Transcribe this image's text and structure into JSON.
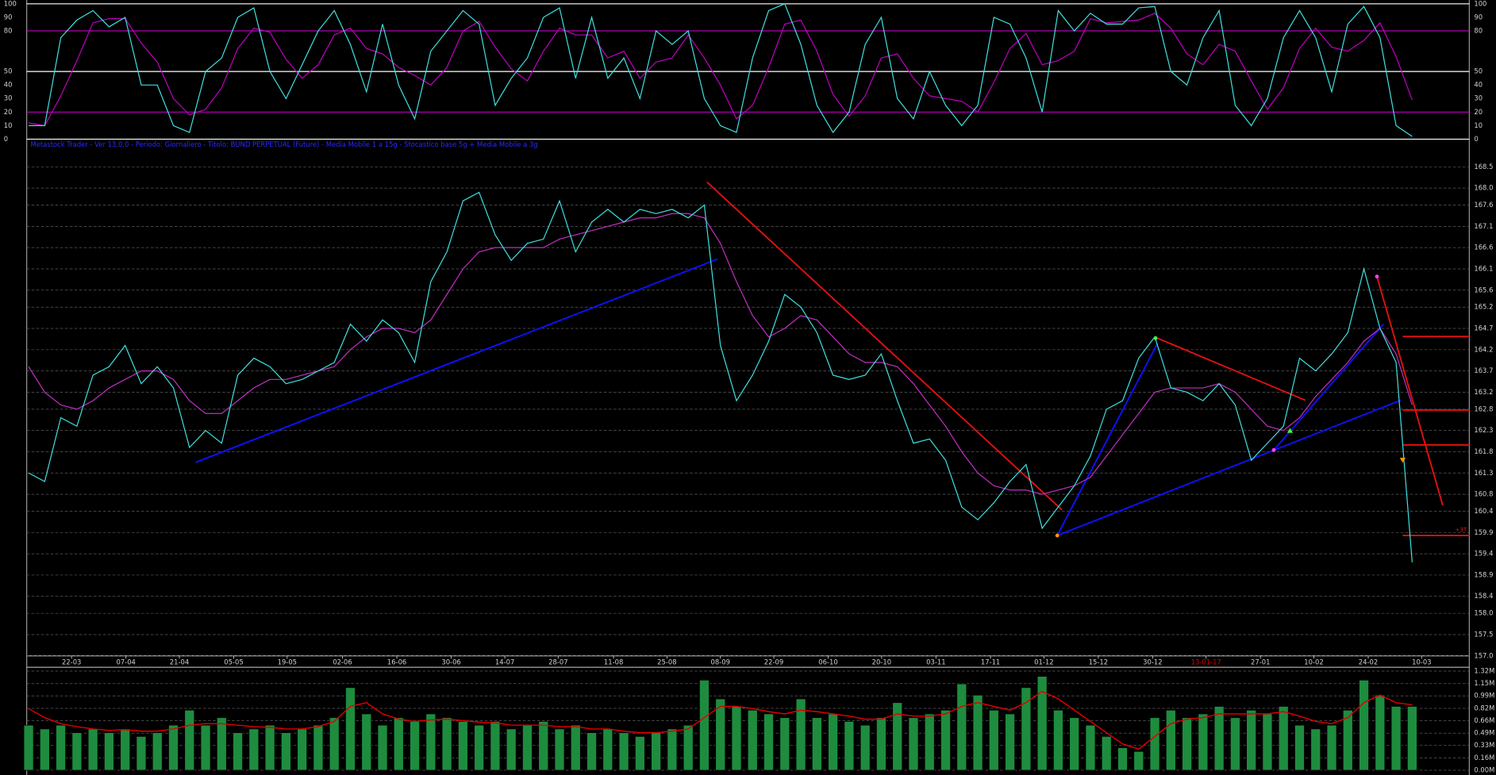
{
  "chart_data": [
    {
      "type": "line",
      "xlim": [
        0,
        87
      ],
      "ylim": [
        0,
        100
      ],
      "yticks": [
        0,
        10,
        20,
        30,
        40,
        50,
        80,
        90,
        100
      ],
      "hlines": [
        {
          "value": 100,
          "color": "#ffffff"
        },
        {
          "value": 80,
          "color": "#c000c0"
        },
        {
          "value": 50,
          "color": "#ffffff"
        },
        {
          "value": 20,
          "color": "#c000c0"
        },
        {
          "value": 0,
          "color": "#ffffff"
        }
      ],
      "series": [
        {
          "color": "#40e0e0",
          "values": [
            10,
            10,
            75,
            88,
            95,
            83,
            90,
            40,
            40,
            10,
            5,
            50,
            60,
            90,
            97,
            50,
            30,
            55,
            80,
            95,
            70,
            35,
            85,
            40,
            15,
            65,
            80,
            95,
            85,
            25,
            45,
            60,
            90,
            97,
            45,
            90,
            45,
            60,
            30,
            80,
            70,
            80,
            30,
            10,
            5,
            60,
            95,
            100,
            70,
            25,
            5,
            20,
            70,
            90,
            30,
            15,
            50,
            25,
            10,
            25,
            90,
            85,
            60,
            20,
            95,
            80,
            93,
            85,
            85,
            97,
            98,
            50,
            40,
            75,
            95,
            25,
            10,
            30,
            75,
            95,
            75,
            35,
            85,
            98,
            75,
            10,
            2
          ]
        },
        {
          "color": "#c000c0",
          "values": [
            12,
            10,
            32,
            58,
            86,
            89,
            89,
            71,
            57,
            30,
            18,
            22,
            38,
            67,
            82,
            79,
            59,
            45,
            55,
            77,
            82,
            67,
            63,
            53,
            47,
            40,
            53,
            80,
            87,
            68,
            52,
            43,
            65,
            82,
            77,
            77,
            60,
            65,
            45,
            57,
            60,
            77,
            60,
            40,
            15,
            25,
            53,
            85,
            88,
            65,
            33,
            17,
            32,
            60,
            63,
            45,
            32,
            30,
            28,
            20,
            42,
            67,
            78,
            55,
            58,
            65,
            89,
            86,
            87,
            88,
            93,
            82,
            63,
            55,
            70,
            65,
            43,
            22,
            38,
            67,
            82,
            68,
            65,
            73,
            86,
            61,
            29
          ]
        }
      ]
    },
    {
      "type": "line",
      "title": "Metastock Trader - Ver 13.0.0 - Periodo: Giornaliero - Titolo: BUND PERPETUAL (Future) - Media Mobile 1 a 15g - Stocastico base 5g + Media Mobile a 3g",
      "xlim": [
        0,
        87
      ],
      "ylim": [
        157,
        168.5
      ],
      "grid": true,
      "yticks": [
        {
          "value": 157,
          "label": "157.0"
        },
        157.5,
        {
          "value": 158,
          "label": "158.0"
        },
        158.4,
        158.9,
        159.4,
        159.9,
        160.4,
        160.8,
        161.3,
        161.8,
        162.3,
        162.8,
        163.2,
        163.7,
        164.2,
        164.7,
        165.2,
        165.6,
        166.1,
        166.6,
        167.1,
        167.6,
        {
          "value": 168,
          "label": "168.0"
        },
        168.5
      ],
      "xticks": [
        {
          "value": 2.67,
          "label": "22-03"
        },
        {
          "value": 6.05,
          "label": "07-04"
        },
        {
          "value": 9.37,
          "label": "21-04"
        },
        {
          "value": 12.75,
          "label": "05-05"
        },
        {
          "value": 16.07,
          "label": "19-05"
        },
        {
          "value": 19.51,
          "label": "02-06"
        },
        {
          "value": 22.89,
          "label": "16-06"
        },
        {
          "value": 26.27,
          "label": "30-06"
        },
        {
          "value": 29.6,
          "label": "14-07"
        },
        {
          "value": 32.92,
          "label": "28-07"
        },
        {
          "value": 36.36,
          "label": "11-08"
        },
        {
          "value": 39.68,
          "label": "25-08"
        },
        {
          "value": 43.0,
          "label": "08-09"
        },
        {
          "value": 46.32,
          "label": "22-09"
        },
        {
          "value": 49.7,
          "label": "06-10"
        },
        {
          "value": 53.02,
          "label": "20-10"
        },
        {
          "value": 56.4,
          "label": "03-11"
        },
        {
          "value": 59.79,
          "label": "17-11"
        },
        {
          "value": 63.11,
          "label": "01-12"
        },
        {
          "value": 66.49,
          "label": "15-12"
        },
        {
          "value": 69.87,
          "label": "30-12"
        },
        {
          "value": 73.19,
          "label": "13-01-17",
          "color": "#e00000"
        },
        {
          "value": 76.57,
          "label": "27-01"
        },
        {
          "value": 79.89,
          "label": "10-02"
        },
        {
          "value": 83.27,
          "label": "24-02"
        },
        {
          "value": 86.59,
          "label": "10-03"
        }
      ],
      "series": [
        {
          "color": "#40e0e0",
          "values": [
            161.3,
            161.1,
            162.6,
            162.4,
            163.6,
            163.8,
            164.3,
            163.4,
            163.8,
            163.3,
            161.9,
            162.3,
            162.0,
            163.6,
            164.0,
            163.8,
            163.4,
            163.5,
            163.7,
            163.9,
            164.8,
            164.4,
            164.9,
            164.6,
            163.9,
            165.8,
            166.5,
            167.7,
            167.9,
            166.9,
            166.3,
            166.7,
            166.8,
            167.7,
            166.5,
            167.2,
            167.5,
            167.2,
            167.5,
            167.4,
            167.5,
            167.3,
            167.6,
            164.3,
            163.0,
            163.6,
            164.4,
            165.5,
            165.2,
            164.6,
            163.6,
            163.5,
            163.6,
            164.1,
            163.0,
            162.0,
            162.1,
            161.6,
            160.5,
            160.2,
            160.6,
            161.1,
            161.5,
            160.0,
            160.5,
            161.0,
            161.7,
            162.8,
            163.0,
            164.0,
            164.5,
            163.3,
            163.2,
            163.0,
            163.4,
            162.9,
            161.6,
            162.0,
            162.4,
            164.0,
            163.7,
            164.1,
            164.6,
            166.1,
            164.7,
            163.9,
            159.2
          ]
        },
        {
          "color": "#c030c0",
          "values": [
            163.8,
            163.2,
            162.9,
            162.8,
            163.0,
            163.3,
            163.5,
            163.7,
            163.7,
            163.5,
            163.0,
            162.7,
            162.7,
            163.0,
            163.3,
            163.5,
            163.5,
            163.6,
            163.7,
            163.8,
            164.2,
            164.5,
            164.7,
            164.7,
            164.6,
            164.9,
            165.5,
            166.1,
            166.5,
            166.6,
            166.6,
            166.6,
            166.6,
            166.8,
            166.9,
            167.0,
            167.1,
            167.2,
            167.3,
            167.3,
            167.4,
            167.4,
            167.3,
            166.7,
            165.8,
            165.0,
            164.5,
            164.7,
            165.0,
            164.9,
            164.5,
            164.1,
            163.9,
            163.9,
            163.8,
            163.4,
            162.9,
            162.4,
            161.8,
            161.3,
            161.0,
            160.9,
            160.9,
            160.8,
            160.9,
            161.0,
            161.2,
            161.7,
            162.2,
            162.7,
            163.2,
            163.3,
            163.3,
            163.3,
            163.4,
            163.2,
            162.8,
            162.4,
            162.3,
            162.6,
            163.1,
            163.5,
            163.9,
            164.4,
            164.7,
            164.1,
            162.9
          ]
        }
      ],
      "trendlines": [
        {
          "color": "#1010ff",
          "from": [
            10.38,
            161.55
          ],
          "to": [
            42.82,
            166.33
          ]
        },
        {
          "color": "#1010ff",
          "from": [
            63.94,
            159.83
          ],
          "to": [
            85.29,
            163.01
          ]
        },
        {
          "color": "#1010ff",
          "from": [
            63.94,
            159.83
          ],
          "to": [
            70.17,
            164.35
          ]
        },
        {
          "color": "#1010ff",
          "from": [
            77.4,
            161.84
          ],
          "to": [
            84.22,
            164.8
          ]
        },
        {
          "color": "#e01010",
          "from": [
            42.17,
            168.14
          ],
          "to": [
            64.24,
            160.43
          ]
        },
        {
          "color": "#e01010",
          "from": [
            70.17,
            164.47
          ],
          "to": [
            79.36,
            163.01
          ]
        },
        {
          "color": "#e01010",
          "from": [
            83.81,
            165.92
          ],
          "to": [
            87.9,
            160.54
          ]
        },
        {
          "color": "#e01010",
          "from": [
            85.41,
            164.51
          ],
          "to": [
            89.56,
            164.51
          ]
        },
        {
          "color": "#e01010",
          "from": [
            85.41,
            162.78
          ],
          "to": [
            89.56,
            162.78
          ]
        },
        {
          "color": "#e01010",
          "from": [
            85.41,
            161.96
          ],
          "to": [
            89.56,
            161.96
          ]
        },
        {
          "color": "#e01010",
          "from": [
            85.41,
            159.83
          ],
          "to": [
            89.56,
            159.83
          ]
        }
      ],
      "markers": [
        {
          "x": 63.94,
          "y": 159.83,
          "color": "#ff9900",
          "shape": "dot"
        },
        {
          "x": 70.05,
          "y": 164.47,
          "color": "#40ff40",
          "shape": "dot"
        },
        {
          "x": 83.81,
          "y": 165.92,
          "color": "#ff40ff",
          "shape": "dot"
        },
        {
          "x": 77.4,
          "y": 161.84,
          "color": "#ff40ff",
          "shape": "dot"
        },
        {
          "x": 78.41,
          "y": 162.3,
          "color": "#40ff40",
          "shape": "triangle-up"
        },
        {
          "x": 85.41,
          "y": 161.6,
          "color": "#ff9900",
          "shape": "triangle-down"
        }
      ],
      "annotations": [
        "+3T"
      ]
    },
    {
      "type": "bar",
      "xlim": [
        0,
        87
      ],
      "ylim": [
        0,
        1.32
      ],
      "grid": true,
      "yticks": [
        {
          "value": 0,
          "label": "0.00M"
        },
        {
          "value": 0.164,
          "label": "0.16M"
        },
        {
          "value": 0.33,
          "label": "0.33M"
        },
        {
          "value": 0.494,
          "label": "0.49M"
        },
        {
          "value": 0.66,
          "label": "0.66M"
        },
        {
          "value": 0.824,
          "label": "0.82M"
        },
        {
          "value": 0.99,
          "label": "0.99M"
        },
        {
          "value": 1.154,
          "label": "1.15M"
        },
        {
          "value": 1.32,
          "label": "1.32M"
        }
      ],
      "series": [
        {
          "kind": "bar",
          "color": "#1e8c3e",
          "values": [
            0.6,
            0.55,
            0.6,
            0.5,
            0.55,
            0.5,
            0.55,
            0.45,
            0.5,
            0.6,
            0.8,
            0.6,
            0.7,
            0.5,
            0.55,
            0.6,
            0.5,
            0.55,
            0.6,
            0.7,
            1.1,
            0.75,
            0.6,
            0.7,
            0.65,
            0.75,
            0.7,
            0.65,
            0.6,
            0.65,
            0.55,
            0.6,
            0.65,
            0.55,
            0.6,
            0.5,
            0.55,
            0.5,
            0.45,
            0.5,
            0.55,
            0.6,
            1.2,
            0.95,
            0.85,
            0.8,
            0.75,
            0.7,
            0.95,
            0.7,
            0.75,
            0.65,
            0.6,
            0.7,
            0.9,
            0.7,
            0.75,
            0.8,
            1.15,
            1.0,
            0.8,
            0.75,
            1.1,
            1.25,
            0.8,
            0.7,
            0.6,
            0.45,
            0.3,
            0.25,
            0.7,
            0.8,
            0.7,
            0.75,
            0.85,
            0.7,
            0.8,
            0.75,
            0.85,
            0.6,
            0.55,
            0.6,
            0.8,
            1.2,
            1.0,
            0.85,
            0.85
          ]
        },
        {
          "kind": "line",
          "color": "#e00000",
          "values": [
            0.82,
            0.7,
            0.62,
            0.58,
            0.55,
            0.53,
            0.54,
            0.52,
            0.52,
            0.55,
            0.6,
            0.62,
            0.62,
            0.6,
            0.58,
            0.57,
            0.55,
            0.55,
            0.58,
            0.65,
            0.85,
            0.9,
            0.75,
            0.68,
            0.65,
            0.67,
            0.68,
            0.66,
            0.64,
            0.63,
            0.6,
            0.6,
            0.6,
            0.58,
            0.58,
            0.55,
            0.55,
            0.52,
            0.5,
            0.5,
            0.52,
            0.55,
            0.7,
            0.85,
            0.85,
            0.82,
            0.78,
            0.75,
            0.8,
            0.78,
            0.75,
            0.72,
            0.68,
            0.68,
            0.75,
            0.72,
            0.72,
            0.75,
            0.85,
            0.9,
            0.85,
            0.8,
            0.9,
            1.05,
            0.95,
            0.8,
            0.65,
            0.5,
            0.35,
            0.28,
            0.45,
            0.62,
            0.68,
            0.7,
            0.75,
            0.75,
            0.75,
            0.75,
            0.78,
            0.72,
            0.65,
            0.62,
            0.7,
            0.9,
            1.0,
            0.9,
            0.87
          ]
        }
      ]
    }
  ]
}
